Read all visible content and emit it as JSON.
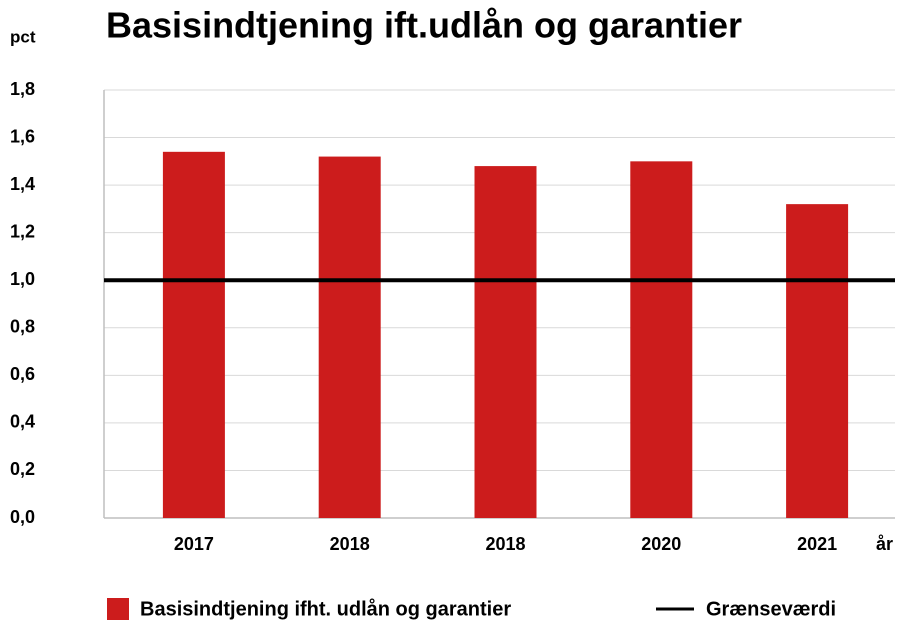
{
  "chart_data": {
    "type": "bar",
    "title": "Basisindtjening ift.udlån og garantier",
    "y_label": "pct",
    "x_label": "år",
    "categories": [
      "2017",
      "2018",
      "2018",
      "2020",
      "2021"
    ],
    "series": [
      {
        "name": "Basisindtjening ifht. udlån og garantier",
        "color": "#cc1c1c",
        "values": [
          1.54,
          1.52,
          1.48,
          1.5,
          1.32
        ]
      }
    ],
    "threshold": {
      "name": "Grænseværdi",
      "color": "#000000",
      "value": 1.0
    },
    "ylim": [
      0,
      1.8
    ],
    "yticks": [
      {
        "value": 0,
        "label": "0,0"
      },
      {
        "value": 0.2,
        "label": "0,2"
      },
      {
        "value": 0.4,
        "label": "0,4"
      },
      {
        "value": 0.6,
        "label": "0,6"
      },
      {
        "value": 0.8,
        "label": "0,8"
      },
      {
        "value": 1.0,
        "label": "1,0"
      },
      {
        "value": 1.2,
        "label": "1,2"
      },
      {
        "value": 1.4,
        "label": "1,4"
      },
      {
        "value": 1.6,
        "label": "1,6"
      },
      {
        "value": 1.8,
        "label": "1,8"
      }
    ],
    "grid": true
  }
}
